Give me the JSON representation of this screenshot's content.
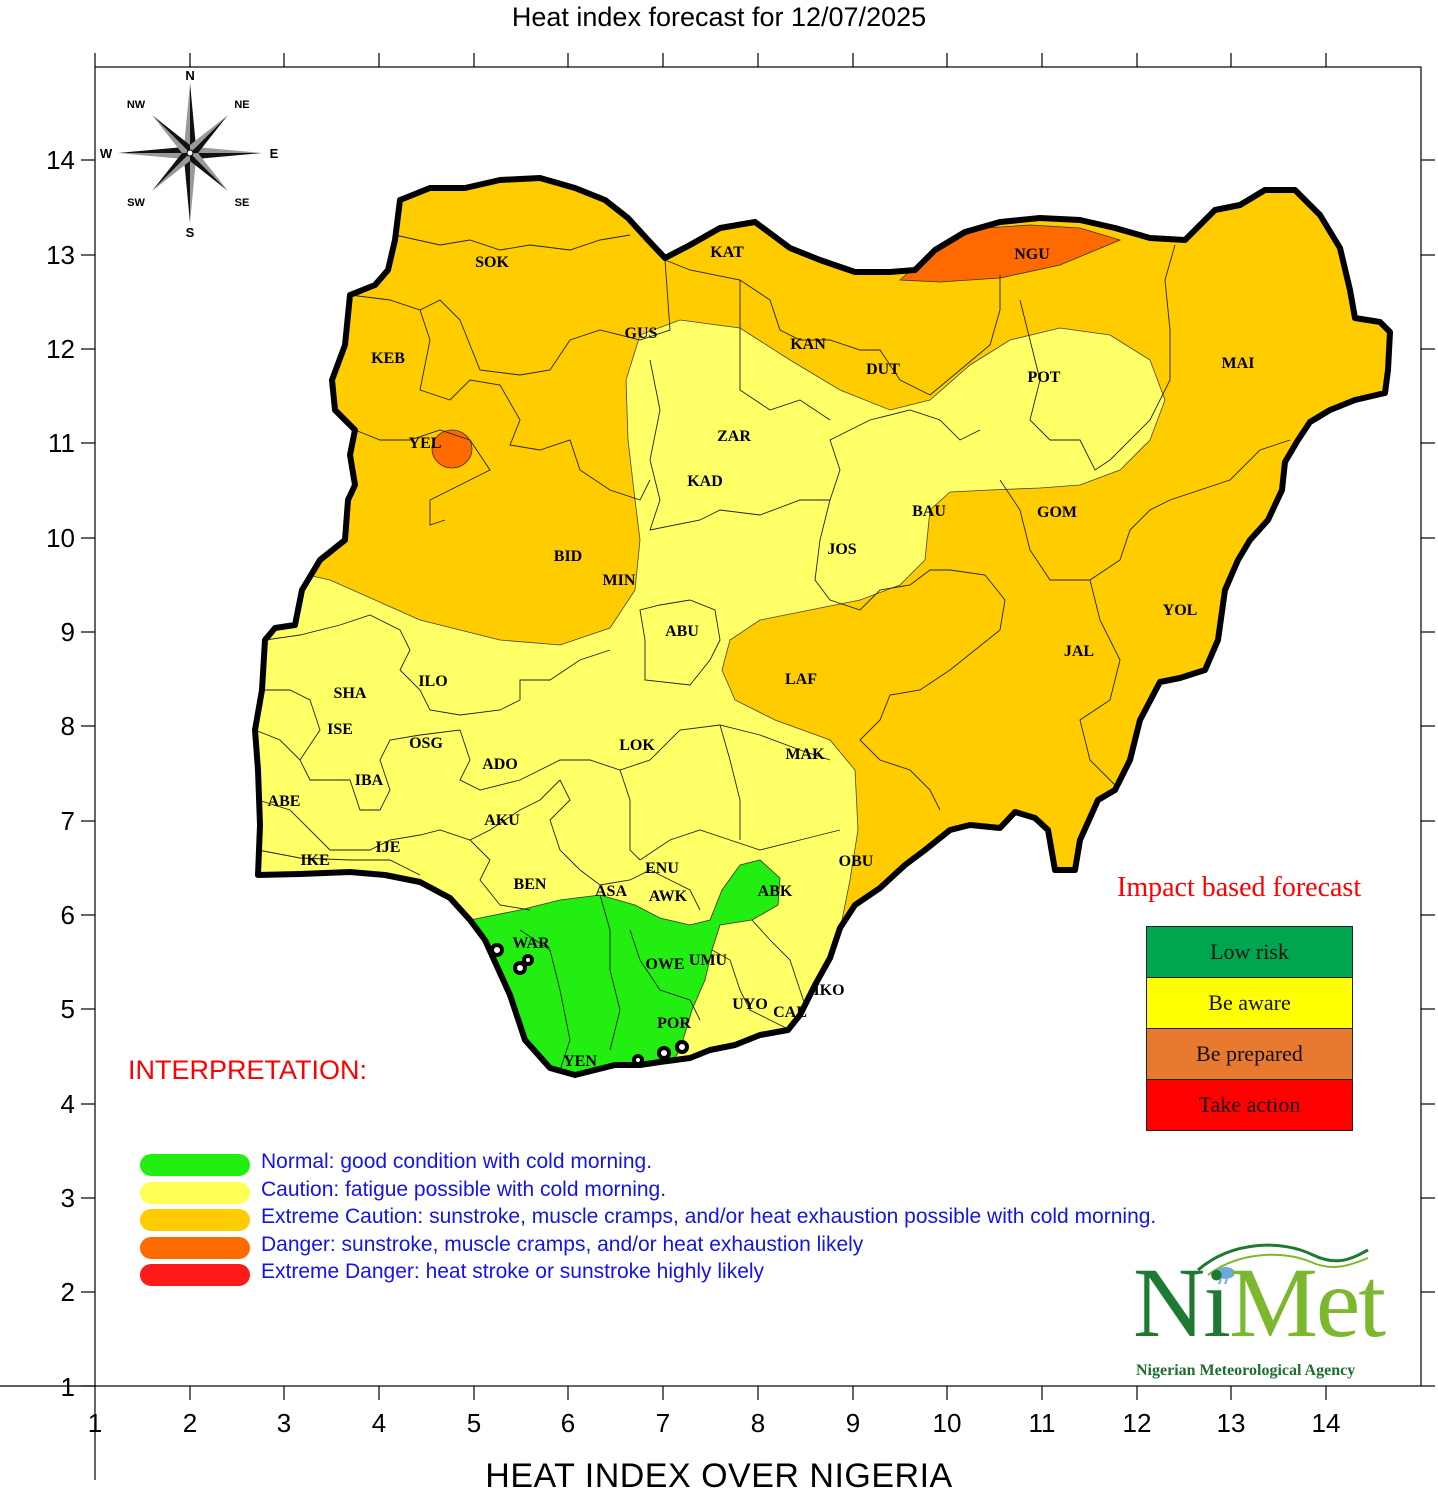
{
  "title": "Heat index forecast for 12/07/2025",
  "x_axis_title": "HEAT INDEX OVER NIGERIA",
  "x_ticks": [
    "1",
    "2",
    "3",
    "4",
    "5",
    "6",
    "7",
    "8",
    "9",
    "10",
    "11",
    "12",
    "13",
    "14"
  ],
  "y_ticks": [
    "14",
    "13",
    "12",
    "11",
    "10",
    "9",
    "8",
    "7",
    "6",
    "5",
    "4",
    "3",
    "2",
    "1"
  ],
  "compass": {
    "n": "N",
    "s": "S",
    "e": "E",
    "w": "W",
    "ne": "NE",
    "nw": "NW",
    "se": "SE",
    "sw": "SW"
  },
  "colors": {
    "normal": "#22ee11",
    "caution": "#ffff55",
    "caution_map": "#ffff66",
    "extreme_caution": "#ffcc00",
    "danger": "#ff6a00",
    "extreme_danger": "#ff1a1a",
    "low_risk": "#00a550",
    "be_aware": "#ffff00",
    "be_prepared": "#e87a30",
    "take_action": "#ff0000"
  },
  "states": {
    "sok": "SOK",
    "kat": "KAT",
    "ngu": "NGU",
    "keb": "KEB",
    "gus": "GUS",
    "kan": "KAN",
    "dut": "DUT",
    "pot": "POT",
    "mai": "MAI",
    "yel": "YEL",
    "zar": "ZAR",
    "kad": "KAD",
    "bau": "BAU",
    "gom": "GOM",
    "bid": "BID",
    "min": "MIN",
    "jos": "JOS",
    "yol": "YOL",
    "abu": "ABU",
    "jal": "JAL",
    "laf": "LAF",
    "sha": "SHA",
    "ilo": "ILO",
    "ise": "ISE",
    "osg": "OSG",
    "ado": "ADO",
    "lok": "LOK",
    "mak": "MAK",
    "iba": "IBA",
    "abe": "ABE",
    "aku": "AKU",
    "ije": "IJE",
    "ike": "IKE",
    "enu": "ENU",
    "obu": "OBU",
    "ben": "BEN",
    "asa": "ASA",
    "awk": "AWK",
    "abk": "ABK",
    "war": "WAR",
    "owe": "OWE",
    "umu": "UMU",
    "uyo": "UYO",
    "iko": "IKO",
    "cal": "CAL",
    "por": "POR",
    "yen": "YEN"
  },
  "interpretation": {
    "title": "INTERPRETATION:",
    "items": [
      {
        "text": "Normal: good condition with cold morning."
      },
      {
        "text": "Caution: fatigue possible  with cold morning."
      },
      {
        "text": "Extreme Caution: sunstroke, muscle cramps, and/or heat exhaustion possible  with cold morning."
      },
      {
        "text": "Danger: sunstroke, muscle cramps, and/or heat exhaustion likely"
      },
      {
        "text": "Extreme Danger: heat stroke or sunstroke highly likely"
      }
    ]
  },
  "impact": {
    "title": "Impact based forecast",
    "levels": [
      "Low risk",
      "Be aware",
      "Be prepared",
      "Take action"
    ]
  },
  "logo": {
    "ni": "Ni",
    "met": "Met",
    "subtitle": "Nigerian Meteorological Agency"
  }
}
